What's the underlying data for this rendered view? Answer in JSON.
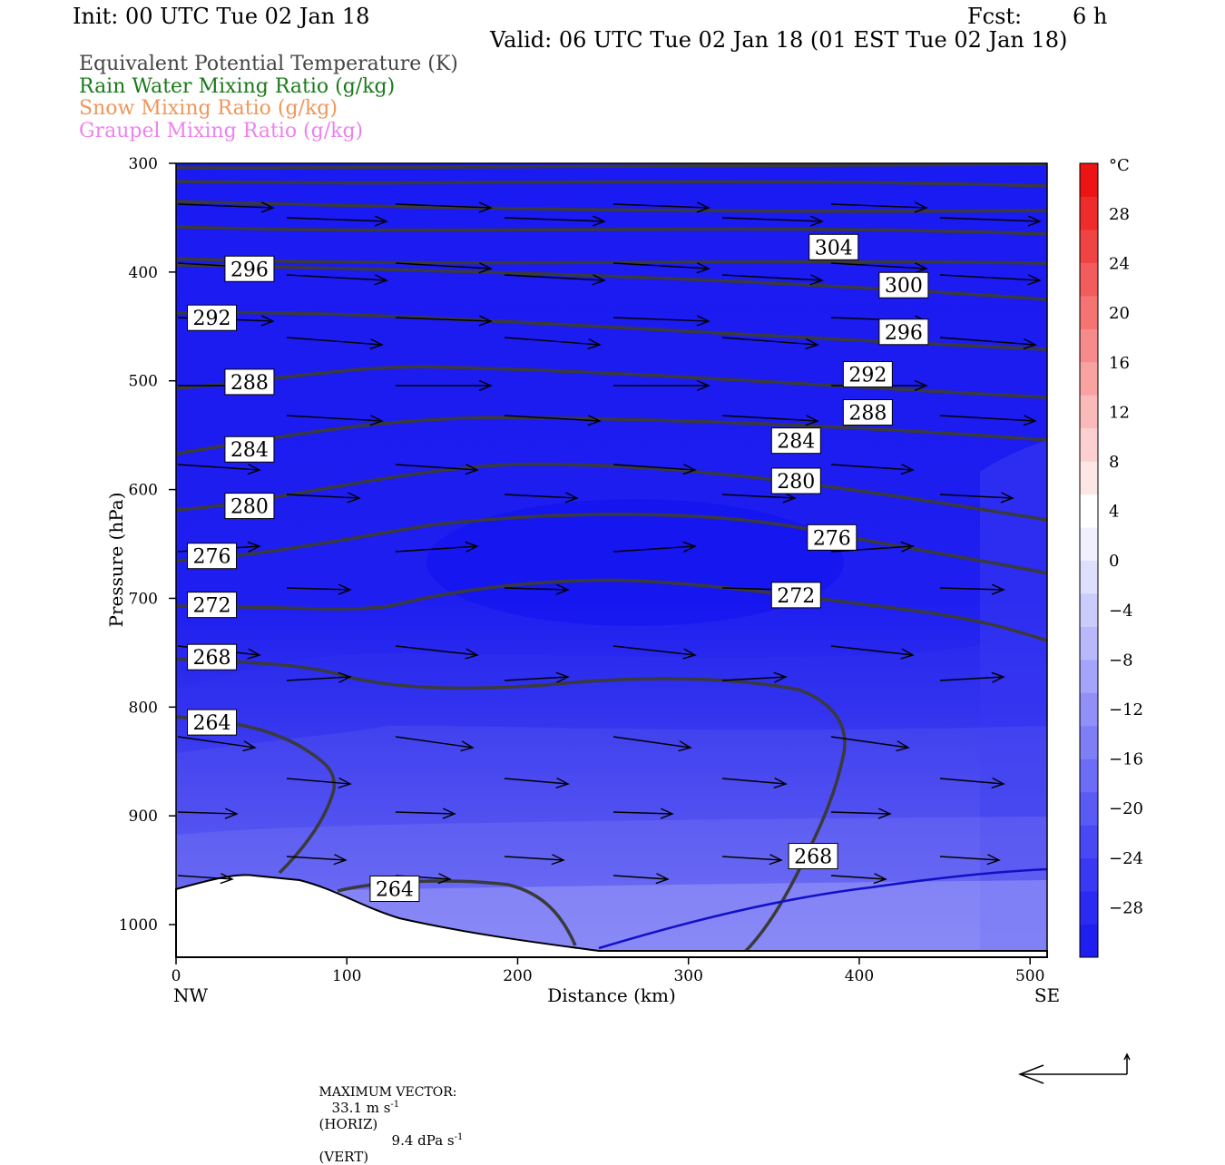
{
  "header": {
    "init": "Init: 00 UTC Tue 02 Jan 18",
    "fcst_label": "Fcst:",
    "fcst_value": "6 h",
    "valid": "Valid: 06 UTC Tue 02 Jan 18 (01 EST Tue 02 Jan 18)"
  },
  "field_titles": [
    {
      "text": "Equivalent Potential Temperature (K)",
      "color": "#444444"
    },
    {
      "text": "Rain Water Mixing Ratio (g/kg)",
      "color": "#1a7a1a"
    },
    {
      "text": "Snow Mixing Ratio (g/kg)",
      "color": "#f0965a"
    },
    {
      "text": "Graupel Mixing Ratio (g/kg)",
      "color": "#ee82ee"
    }
  ],
  "footer": {
    "max_vector_label": "MAXIMUM VECTOR:",
    "horiz_value": "33.1 m s",
    "horiz_exp": "-1",
    "horiz_tag": "(HORIZ)",
    "vert_value": "9.4 dPa s",
    "vert_exp": "-1",
    "vert_tag": "(VERT)"
  },
  "colorbar": {
    "unit": "°C",
    "tick_labels": [
      "28",
      "24",
      "20",
      "16",
      "12",
      "8",
      "4",
      "0",
      "−4",
      "−8",
      "−12",
      "−16",
      "−20",
      "−24",
      "−28"
    ],
    "colors": [
      "#1e1ef0",
      "#2a2af2",
      "#3939f3",
      "#4848f4",
      "#5a5af5",
      "#6c6cf6",
      "#7e7ef7",
      "#9090f8",
      "#a4a4fa",
      "#b8b8fb",
      "#cbcbfc",
      "#dedefd",
      "#f0f0fe",
      "#ffffff",
      "#fde6e6",
      "#fcd0d0",
      "#fbbaba",
      "#f9a2a2",
      "#f78a8a",
      "#f57373",
      "#f35c5c",
      "#f04444",
      "#ee2c2c",
      "#ec1414"
    ]
  },
  "chart_data": {
    "type": "cross-section",
    "xlabel": "Distance (km)",
    "ylabel": "Pressure (hPa)",
    "x_ticks": [
      "0",
      "100",
      "200",
      "300",
      "400",
      "500"
    ],
    "y_ticks": [
      "300",
      "400",
      "500",
      "600",
      "700",
      "800",
      "900",
      "1000"
    ],
    "xlim": [
      0,
      510
    ],
    "ylim": [
      300,
      1030
    ],
    "y_inverted": true,
    "end_labels": {
      "left": "NW",
      "right": "SE"
    },
    "temperature_shading": "blue (≈ -28 to -12 °C), colder aloft",
    "theta_e_contour_labels": [
      {
        "label": "304",
        "x": 385,
        "p": 377
      },
      {
        "label": "300",
        "x": 426,
        "p": 412
      },
      {
        "label": "296",
        "x": 43,
        "p": 397
      },
      {
        "label": "296",
        "x": 426,
        "p": 455
      },
      {
        "label": "292",
        "x": 21,
        "p": 442
      },
      {
        "label": "292",
        "x": 405,
        "p": 494
      },
      {
        "label": "288",
        "x": 43,
        "p": 501
      },
      {
        "label": "288",
        "x": 405,
        "p": 529
      },
      {
        "label": "284",
        "x": 43,
        "p": 563
      },
      {
        "label": "284",
        "x": 363,
        "p": 555
      },
      {
        "label": "280",
        "x": 43,
        "p": 615
      },
      {
        "label": "280",
        "x": 363,
        "p": 592
      },
      {
        "label": "276",
        "x": 21,
        "p": 661
      },
      {
        "label": "276",
        "x": 384,
        "p": 644
      },
      {
        "label": "272",
        "x": 21,
        "p": 706
      },
      {
        "label": "272",
        "x": 363,
        "p": 697
      },
      {
        "label": "268",
        "x": 21,
        "p": 754
      },
      {
        "label": "268",
        "x": 373,
        "p": 937
      },
      {
        "label": "264",
        "x": 21,
        "p": 814
      },
      {
        "label": "264",
        "x": 128,
        "p": 967
      }
    ],
    "zero_c_isotherm": "blue line from ~250 km near surface rising to ~960 hPa at 510 km",
    "wind_vectors": "horizontal-vertical circulation arrows, westerly (NW to SE) throughout",
    "grid": false
  }
}
